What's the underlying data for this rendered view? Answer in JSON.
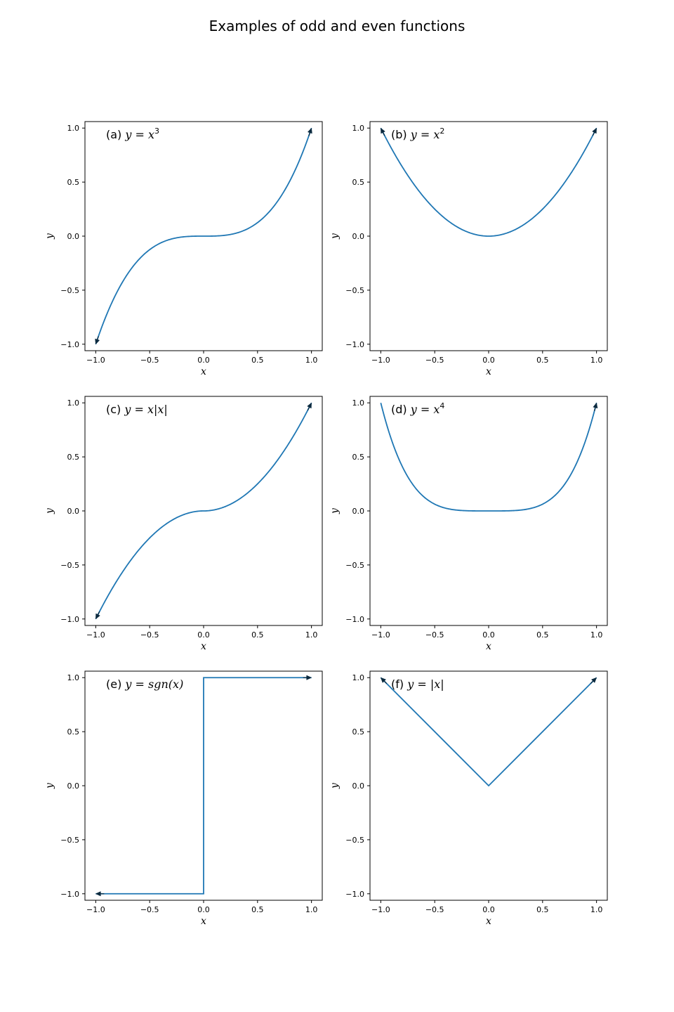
{
  "figure": {
    "title": "Examples of odd and even functions",
    "line_color": "#1f77b4",
    "arrow_color": "#0b2a3f"
  },
  "chart_data": [
    {
      "type": "line",
      "title": "(a) y = x³",
      "title_parts": {
        "prefix": "(a) ",
        "formula": "y = x",
        "sup": "3",
        "suffix": ""
      },
      "function": "x^3",
      "xlabel": "x",
      "ylabel": "y",
      "xlim": [
        -1.1,
        1.1
      ],
      "ylim": [
        -1.06,
        1.06
      ],
      "xticks": [
        "−1.0",
        "−0.5",
        "0.0",
        "0.5",
        "1.0"
      ],
      "yticks": [
        "−1.0",
        "−0.5",
        "0.0",
        "0.5",
        "1.0"
      ],
      "x": [
        -1.0,
        -0.75,
        -0.5,
        -0.25,
        0.0,
        0.25,
        0.5,
        0.75,
        1.0
      ],
      "y": [
        -1.0,
        -0.421875,
        -0.125,
        -0.015625,
        0.0,
        0.015625,
        0.125,
        0.421875,
        1.0
      ],
      "arrows": [
        "start",
        "end"
      ]
    },
    {
      "type": "line",
      "title": "(b) y = x²",
      "title_parts": {
        "prefix": "(b) ",
        "formula": "y = x",
        "sup": "2",
        "suffix": ""
      },
      "function": "x^2",
      "xlabel": "x",
      "ylabel": "y",
      "xlim": [
        -1.1,
        1.1
      ],
      "ylim": [
        -1.06,
        1.06
      ],
      "xticks": [
        "−1.0",
        "−0.5",
        "0.0",
        "0.5",
        "1.0"
      ],
      "yticks": [
        "−1.0",
        "−0.5",
        "0.0",
        "0.5",
        "1.0"
      ],
      "x": [
        -1.0,
        -0.75,
        -0.5,
        -0.25,
        0.0,
        0.25,
        0.5,
        0.75,
        1.0
      ],
      "y": [
        1.0,
        0.5625,
        0.25,
        0.0625,
        0.0,
        0.0625,
        0.25,
        0.5625,
        1.0
      ],
      "arrows": [
        "start",
        "end"
      ]
    },
    {
      "type": "line",
      "title": "(c) y = x|x|",
      "title_parts": {
        "prefix": "(c) ",
        "formula": "y = x|x|",
        "sup": "",
        "suffix": ""
      },
      "function": "x*abs(x)",
      "xlabel": "x",
      "ylabel": "y",
      "xlim": [
        -1.1,
        1.1
      ],
      "ylim": [
        -1.06,
        1.06
      ],
      "xticks": [
        "−1.0",
        "−0.5",
        "0.0",
        "0.5",
        "1.0"
      ],
      "yticks": [
        "−1.0",
        "−0.5",
        "0.0",
        "0.5",
        "1.0"
      ],
      "x": [
        -1.0,
        -0.75,
        -0.5,
        -0.25,
        0.0,
        0.25,
        0.5,
        0.75,
        1.0
      ],
      "y": [
        -1.0,
        -0.5625,
        -0.25,
        -0.0625,
        0.0,
        0.0625,
        0.25,
        0.5625,
        1.0
      ],
      "arrows": [
        "start",
        "end"
      ]
    },
    {
      "type": "line",
      "title": "(d) y = x⁴",
      "title_parts": {
        "prefix": "(d) ",
        "formula": "y = x",
        "sup": "4",
        "suffix": ""
      },
      "function": "x^4",
      "xlabel": "x",
      "ylabel": "y",
      "xlim": [
        -1.1,
        1.1
      ],
      "ylim": [
        -1.06,
        1.06
      ],
      "xticks": [
        "−1.0",
        "−0.5",
        "0.0",
        "0.5",
        "1.0"
      ],
      "yticks": [
        "−1.0",
        "−0.5",
        "0.0",
        "0.5",
        "1.0"
      ],
      "x": [
        -1.0,
        -0.75,
        -0.5,
        -0.25,
        0.0,
        0.25,
        0.5,
        0.75,
        1.0
      ],
      "y": [
        1.0,
        0.31640625,
        0.0625,
        0.00390625,
        0.0,
        0.00390625,
        0.0625,
        0.31640625,
        1.0
      ],
      "arrows": [
        "end"
      ]
    },
    {
      "type": "line",
      "title": "(e) y = sgn(x)",
      "title_parts": {
        "prefix": "(e) ",
        "formula": "y = sgn(x)",
        "sup": "",
        "suffix": ""
      },
      "function": "sgn(x)",
      "xlabel": "x",
      "ylabel": "y",
      "xlim": [
        -1.1,
        1.1
      ],
      "ylim": [
        -1.06,
        1.06
      ],
      "xticks": [
        "−1.0",
        "−0.5",
        "0.0",
        "0.5",
        "1.0"
      ],
      "yticks": [
        "−1.0",
        "−0.5",
        "0.0",
        "0.5",
        "1.0"
      ],
      "x": [
        -1.0,
        0.0,
        0.0,
        1.0
      ],
      "y": [
        -1.0,
        -1.0,
        1.0,
        1.0
      ],
      "arrows": [
        "start",
        "end"
      ]
    },
    {
      "type": "line",
      "title": "(f) y = |x|",
      "title_parts": {
        "prefix": "(f) ",
        "formula": "y = |x|",
        "sup": "",
        "suffix": ""
      },
      "function": "abs(x)",
      "xlabel": "x",
      "ylabel": "y",
      "xlim": [
        -1.1,
        1.1
      ],
      "ylim": [
        -1.06,
        1.06
      ],
      "xticks": [
        "−1.0",
        "−0.5",
        "0.0",
        "0.5",
        "1.0"
      ],
      "yticks": [
        "−1.0",
        "−0.5",
        "0.0",
        "0.5",
        "1.0"
      ],
      "x": [
        -1.0,
        0.0,
        1.0
      ],
      "y": [
        1.0,
        0.0,
        1.0
      ],
      "arrows": [
        "start",
        "end"
      ]
    }
  ]
}
